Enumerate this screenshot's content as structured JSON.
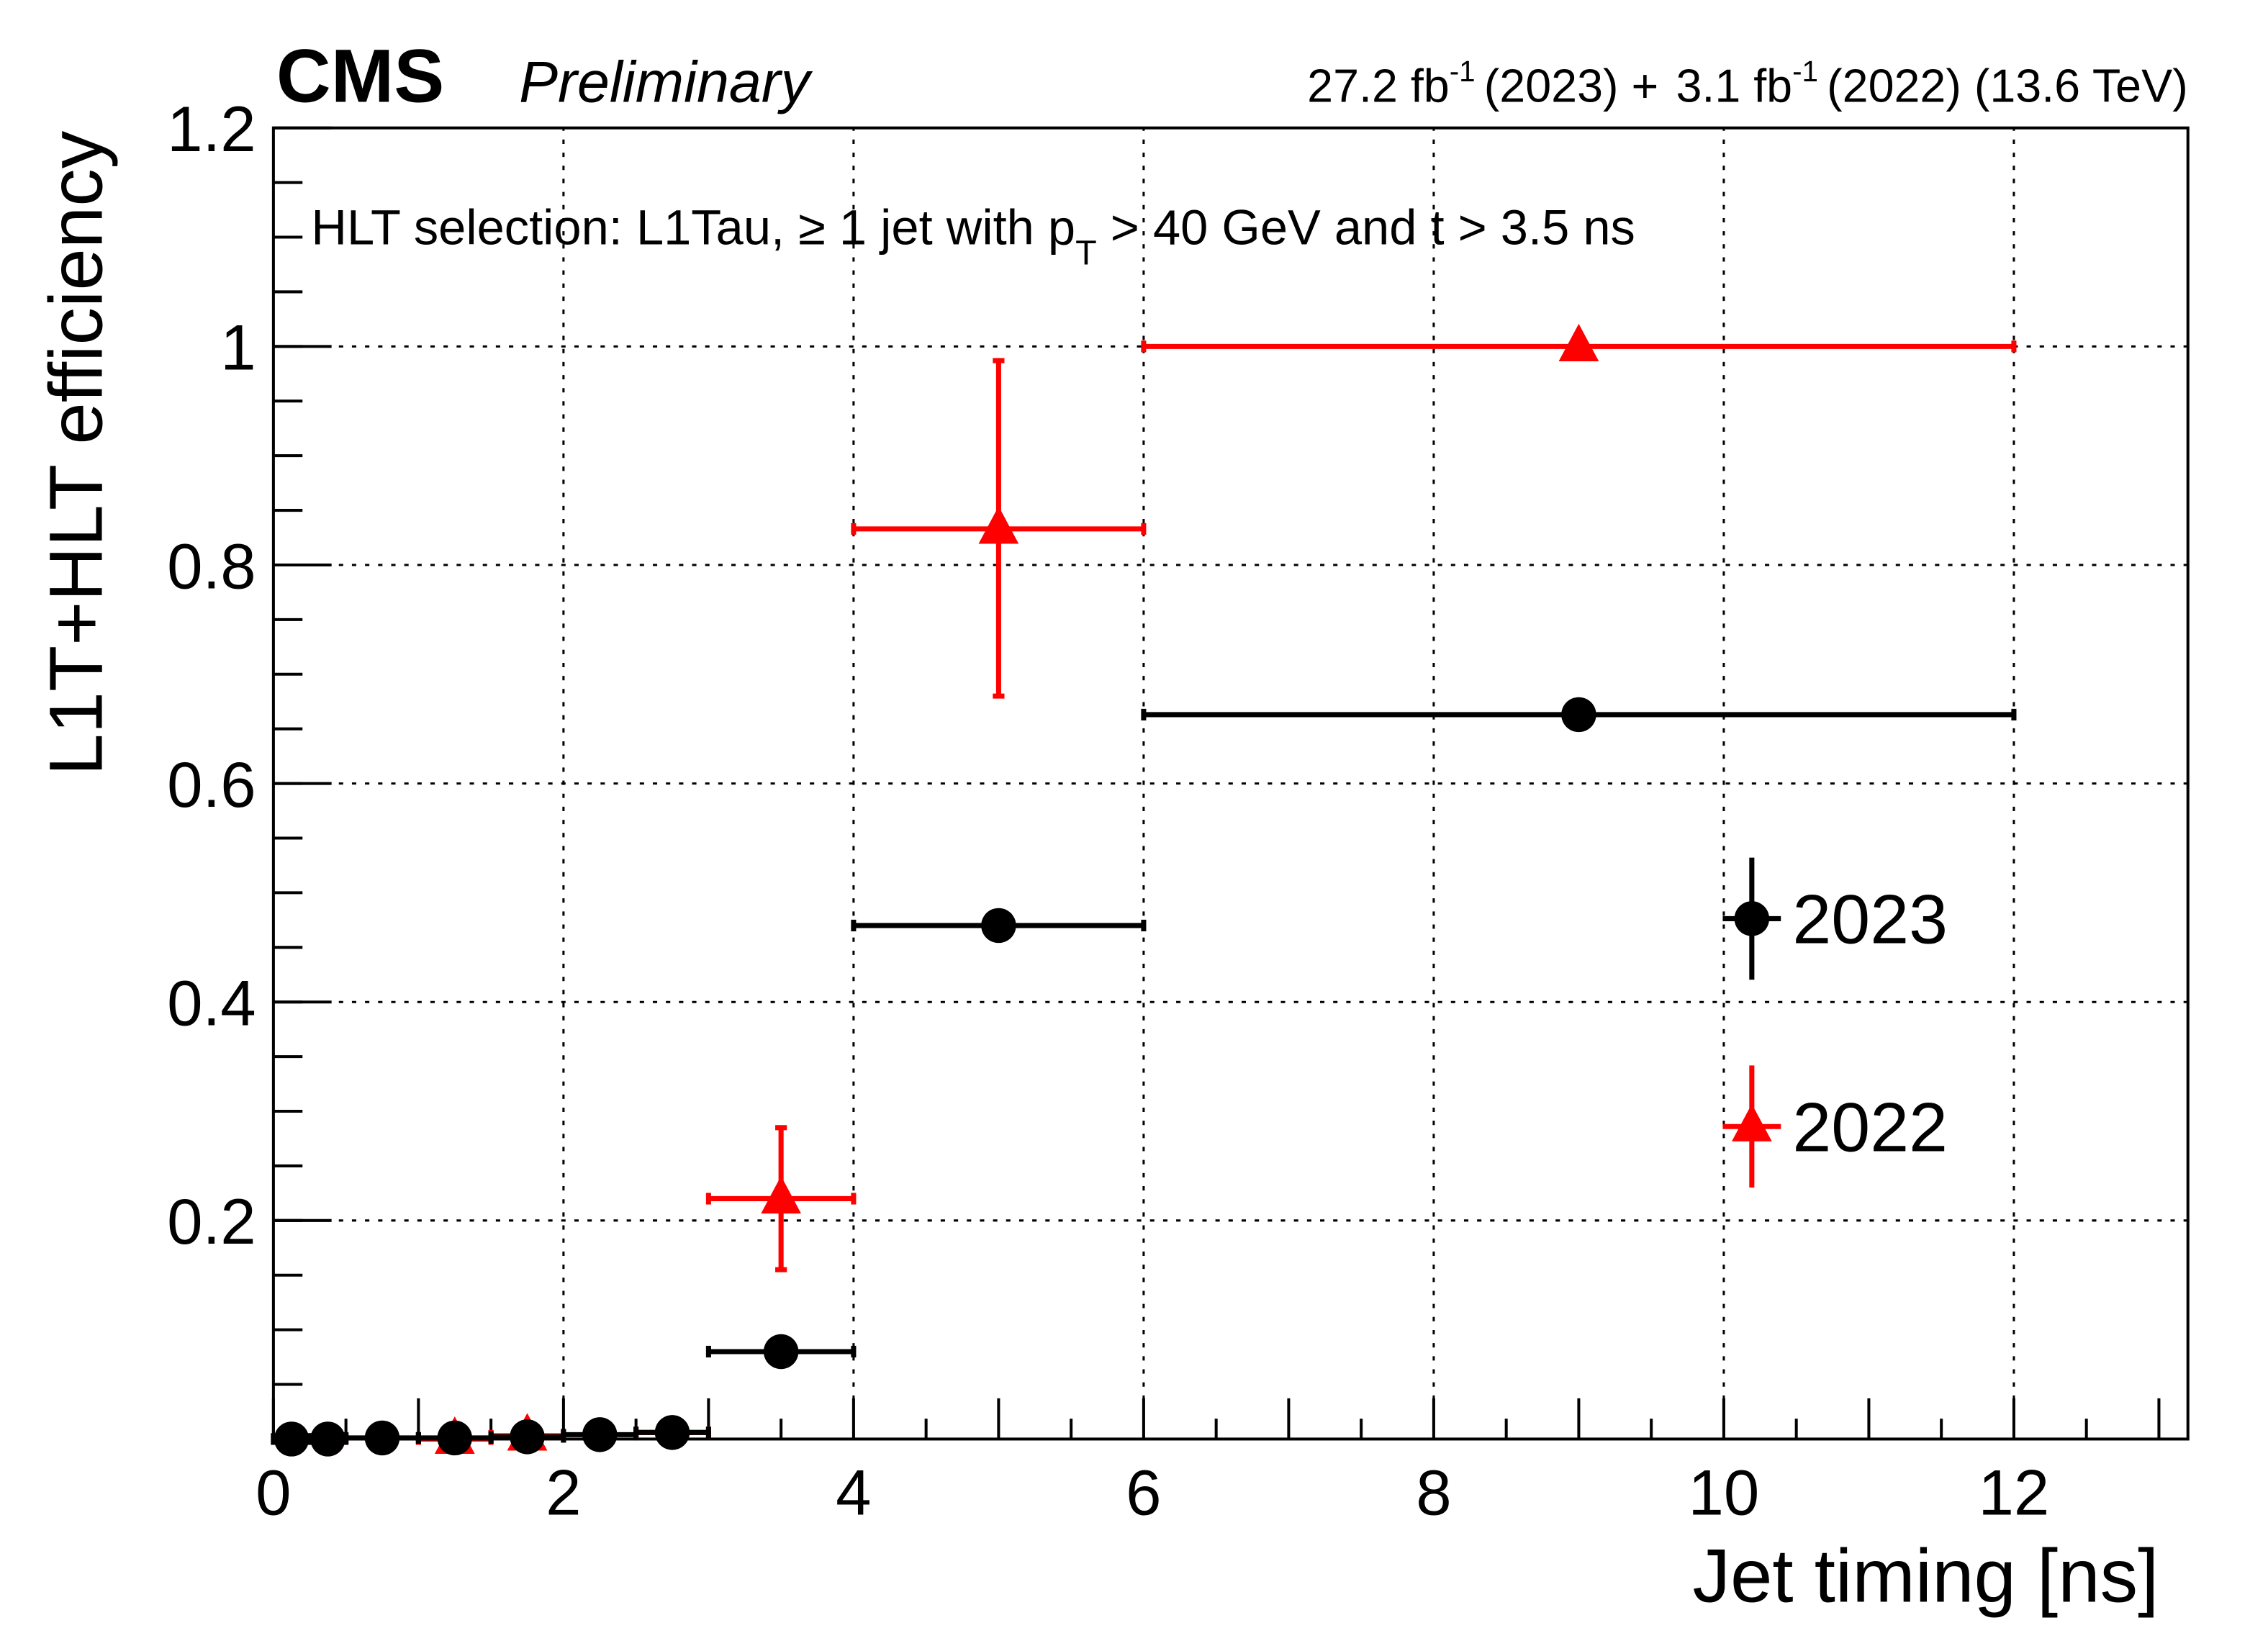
{
  "header": {
    "experiment": "CMS",
    "status": "Preliminary",
    "lumi_2023": "27.2 fb",
    "lumi_sup": "-1",
    "lumi_2023_year": "(2023) +",
    "lumi_2022": "3.1 fb",
    "lumi_2022_year": "(2022) (13.6 TeV)"
  },
  "annotation": {
    "prefix": "HLT selection: L1Tau, ≥ 1 jet with p",
    "sub": "T",
    "suffix": " > 40 GeV and t > 3.5 ns"
  },
  "chart_data": {
    "type": "scatter",
    "title": "",
    "xlabel": "Jet timing [ns]",
    "ylabel": "L1T+HLT efficiency",
    "xlim": [
      0,
      13.2
    ],
    "ylim": [
      0,
      1.2
    ],
    "grid": true,
    "legend_placement": "right",
    "x_ticks": [
      "0",
      "2",
      "4",
      "6",
      "8",
      "10",
      "12"
    ],
    "y_ticks": [
      {
        "v": 0.2,
        "label": "0.2"
      },
      {
        "v": 0.4,
        "label": "0.4"
      },
      {
        "v": 0.6,
        "label": "0.6"
      },
      {
        "v": 0.8,
        "label": "0.8"
      },
      {
        "v": 1.0,
        "label": "1"
      },
      {
        "v": 1.2,
        "label": "1.2"
      }
    ],
    "series": [
      {
        "name": "2023",
        "color": "#000000",
        "marker": "circle",
        "points": [
          {
            "x": 0.125,
            "xlo": 0,
            "xhi": 0.25,
            "y": 0.0,
            "ylo": 0.0,
            "yhi": 0.0
          },
          {
            "x": 0.375,
            "xlo": 0.25,
            "xhi": 0.5,
            "y": 0.0,
            "ylo": 0.0,
            "yhi": 0.0
          },
          {
            "x": 0.75,
            "xlo": 0.5,
            "xhi": 1.0,
            "y": 0.001,
            "ylo": 0.0,
            "yhi": 0.002
          },
          {
            "x": 1.25,
            "xlo": 1.0,
            "xhi": 1.5,
            "y": 0.001,
            "ylo": 0.0,
            "yhi": 0.002
          },
          {
            "x": 1.75,
            "xlo": 1.5,
            "xhi": 2.0,
            "y": 0.002,
            "ylo": 0.0,
            "yhi": 0.004
          },
          {
            "x": 2.25,
            "xlo": 2.0,
            "xhi": 2.5,
            "y": 0.004,
            "ylo": 0.002,
            "yhi": 0.006
          },
          {
            "x": 2.75,
            "xlo": 2.5,
            "xhi": 3.0,
            "y": 0.006,
            "ylo": 0.004,
            "yhi": 0.008
          },
          {
            "x": 3.5,
            "xlo": 3.0,
            "xhi": 4.0,
            "y": 0.08,
            "ylo": 0.075,
            "yhi": 0.085
          },
          {
            "x": 5.0,
            "xlo": 4.0,
            "xhi": 6.0,
            "y": 0.47,
            "ylo": 0.462,
            "yhi": 0.478
          },
          {
            "x": 9.0,
            "xlo": 6.0,
            "xhi": 12.0,
            "y": 0.663,
            "ylo": 0.655,
            "yhi": 0.671
          }
        ]
      },
      {
        "name": "2022",
        "color": "#ff0000",
        "marker": "triangle",
        "points": [
          {
            "x": 0.125,
            "xlo": 0,
            "xhi": 0.25,
            "y": 0.0,
            "ylo": 0.0,
            "yhi": 0.0,
            "hidden": true
          },
          {
            "x": 0.375,
            "xlo": 0.25,
            "xhi": 0.5,
            "y": 0.0,
            "ylo": 0.0,
            "yhi": 0.0,
            "hidden": true
          },
          {
            "x": 1.25,
            "xlo": 1.0,
            "xhi": 1.5,
            "y": 0.0,
            "ylo": 0.0,
            "yhi": 0.0
          },
          {
            "x": 1.75,
            "xlo": 1.5,
            "xhi": 2.0,
            "y": 0.003,
            "ylo": 0.0,
            "yhi": 0.006
          },
          {
            "x": 2.75,
            "xlo": 2.5,
            "xhi": 3.0,
            "y": 0.006,
            "ylo": 0.006,
            "yhi": 0.006,
            "hidden": true
          },
          {
            "x": 3.5,
            "xlo": 3.0,
            "xhi": 4.0,
            "y": 0.22,
            "ylo": 0.155,
            "yhi": 0.285
          },
          {
            "x": 5.0,
            "xlo": 4.0,
            "xhi": 6.0,
            "y": 0.833,
            "ylo": 0.68,
            "yhi": 0.987
          },
          {
            "x": 9.0,
            "xlo": 6.0,
            "xhi": 12.0,
            "y": 1.0,
            "ylo": 1.0,
            "yhi": 1.0
          }
        ]
      }
    ]
  }
}
